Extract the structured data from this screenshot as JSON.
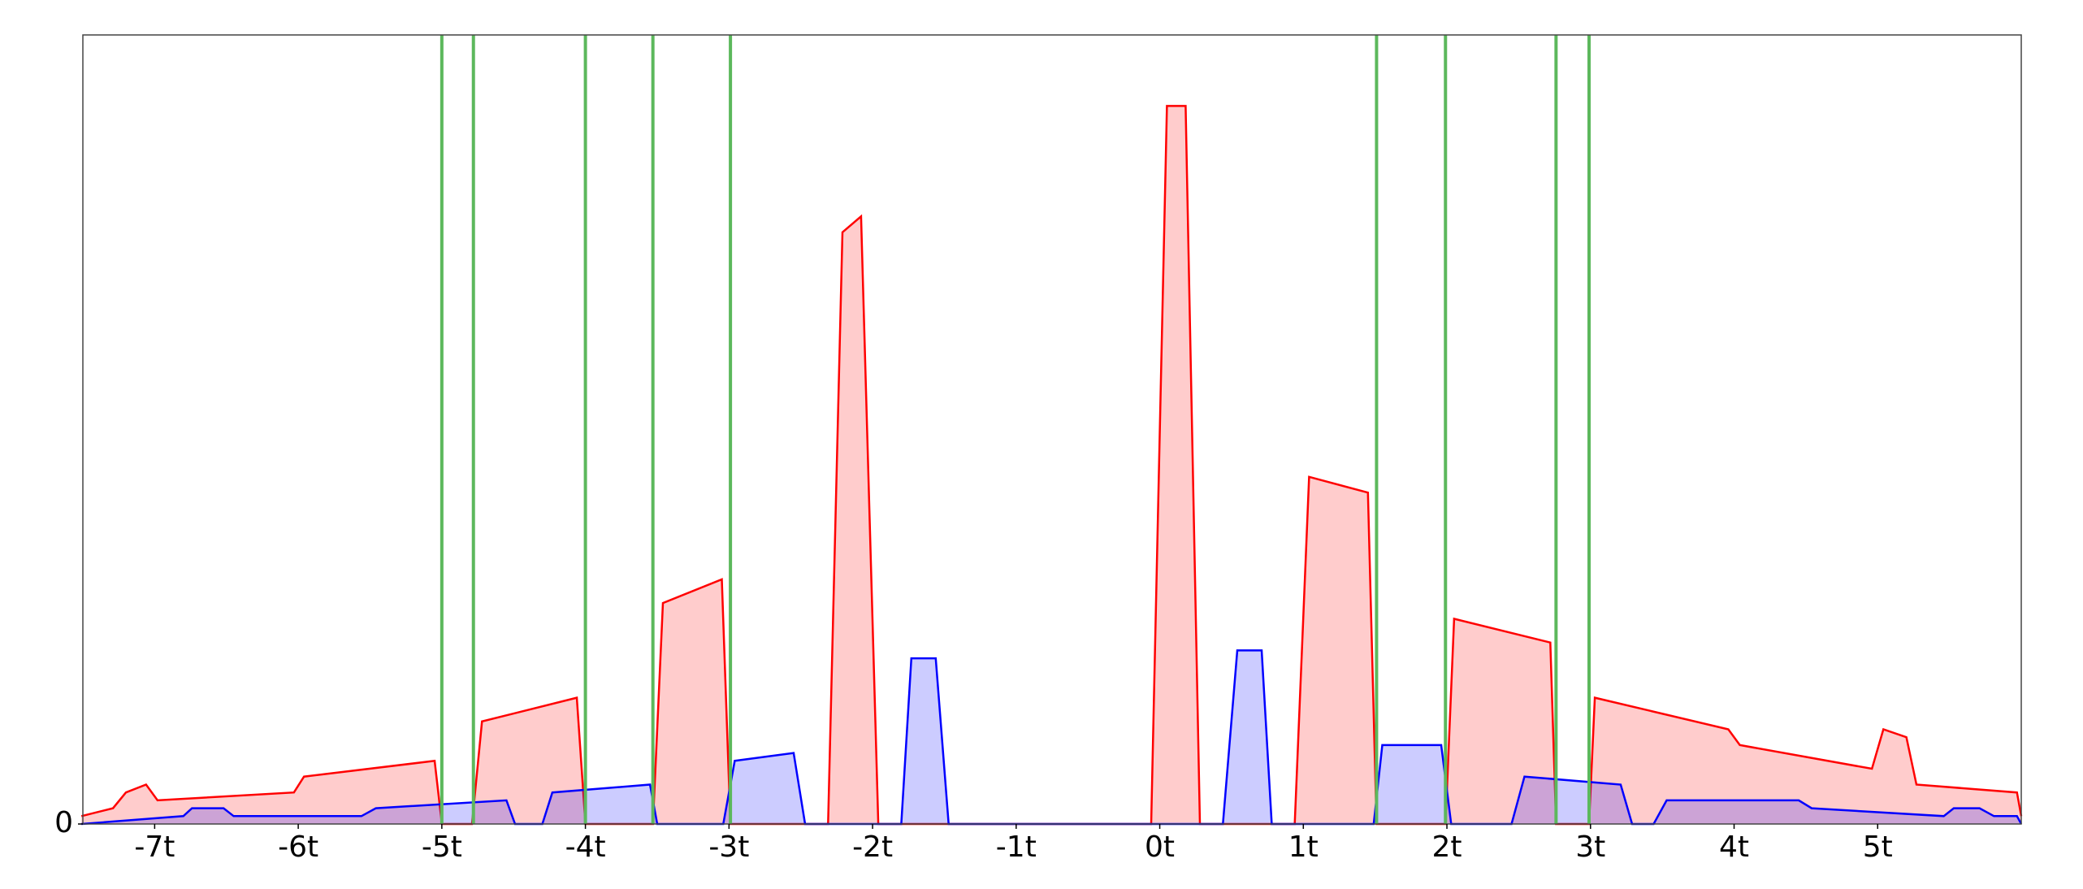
{
  "chart_data": {
    "type": "area",
    "xlim": [
      -7.5,
      6.0
    ],
    "ylim": [
      0,
      1
    ],
    "xticks": [
      {
        "value": -7,
        "label": "-7t"
      },
      {
        "value": -6,
        "label": "-6t"
      },
      {
        "value": -5,
        "label": "-5t"
      },
      {
        "value": -4,
        "label": "-4t"
      },
      {
        "value": -3,
        "label": "-3t"
      },
      {
        "value": -2,
        "label": "-2t"
      },
      {
        "value": -1,
        "label": "-1t"
      },
      {
        "value": 0,
        "label": "0t"
      },
      {
        "value": 1,
        "label": "1t"
      },
      {
        "value": 2,
        "label": "2t"
      },
      {
        "value": 3,
        "label": "3t"
      },
      {
        "value": 4,
        "label": "4t"
      },
      {
        "value": 5,
        "label": "5t"
      }
    ],
    "yticks": [
      0
    ],
    "alpha": 0.2,
    "series": [
      {
        "color": "#ff0000",
        "x": [
          -7.51,
          -7.29,
          -7.2,
          -7.06,
          -6.98,
          -6.03,
          -5.96,
          -5.05,
          -5.0,
          -4.79,
          -4.72,
          -4.06,
          -4.0,
          -3.53,
          -3.46,
          -3.05,
          -2.99,
          -2.31,
          -2.21,
          -2.08,
          -1.96,
          -0.06,
          0.05,
          0.18,
          0.28,
          0.94,
          1.04,
          1.45,
          1.51,
          1.99,
          2.05,
          2.72,
          2.76,
          2.99,
          3.03,
          3.96,
          4.04,
          4.96,
          5.04,
          5.2,
          5.27,
          5.97,
          6.0
        ],
        "values": [
          0.01,
          0.02,
          0.04,
          0.05,
          0.03,
          0.04,
          0.06,
          0.08,
          0,
          0,
          0.13,
          0.16,
          0,
          0,
          0.28,
          0.31,
          0,
          0,
          0.75,
          0.77,
          0,
          0,
          0.91,
          0.91,
          0,
          0,
          0.44,
          0.42,
          0,
          0,
          0.26,
          0.23,
          0,
          0,
          0.16,
          0.12,
          0.1,
          0.07,
          0.12,
          0.11,
          0.05,
          0.04,
          0.01
        ]
      },
      {
        "color": "#0000ff",
        "x": [
          -7.51,
          -6.8,
          -6.74,
          -6.52,
          -6.45,
          -5.56,
          -5.46,
          -4.55,
          -4.49,
          -4.3,
          -4.23,
          -3.55,
          -3.5,
          -3.04,
          -2.96,
          -2.55,
          -2.47,
          -1.8,
          -1.73,
          -1.56,
          -1.47,
          0.44,
          0.54,
          0.71,
          0.78,
          1.49,
          1.55,
          1.96,
          2.03,
          2.45,
          2.54,
          3.21,
          3.29,
          3.44,
          3.53,
          4.45,
          4.54,
          5.46,
          5.53,
          5.71,
          5.81,
          5.97,
          6.0
        ],
        "values": [
          0,
          0.01,
          0.02,
          0.02,
          0.01,
          0.01,
          0.02,
          0.03,
          0,
          0,
          0.04,
          0.05,
          0,
          0,
          0.08,
          0.09,
          0,
          0,
          0.21,
          0.21,
          0,
          0,
          0.22,
          0.22,
          0,
          0,
          0.1,
          0.1,
          0,
          0,
          0.06,
          0.05,
          0,
          0,
          0.03,
          0.03,
          0.02,
          0.01,
          0.02,
          0.02,
          0.01,
          0.01,
          0
        ]
      }
    ],
    "vlines": {
      "color": "#5cb85c",
      "x": [
        -5.0,
        -4.78,
        -4.0,
        -3.53,
        -2.99,
        1.51,
        1.99,
        2.76,
        2.99
      ]
    }
  }
}
